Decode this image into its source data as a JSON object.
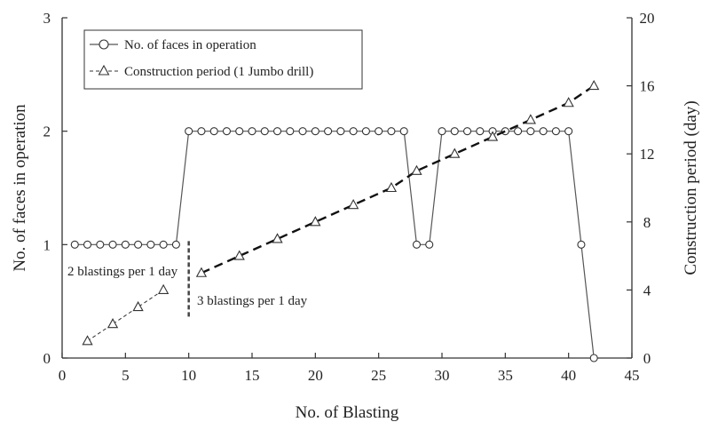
{
  "chart_data": {
    "type": "line",
    "xlabel": "No. of Blasting",
    "ylabel_left": "No. of faces in operation",
    "ylabel_right": "Construction period (day)",
    "xlim": [
      0,
      45
    ],
    "ylim_left": [
      0,
      3
    ],
    "ylim_right": [
      0,
      20
    ],
    "x_ticks": [
      0,
      5,
      10,
      15,
      20,
      25,
      30,
      35,
      40,
      45
    ],
    "y_left_ticks": [
      0,
      1,
      2,
      3
    ],
    "y_right_ticks": [
      0,
      4,
      8,
      12,
      16,
      20
    ],
    "grid": false,
    "legend_position": "top-left",
    "series": [
      {
        "name": "No. of faces in operation",
        "axis": "left",
        "marker": "circle",
        "line_style": "solid",
        "x": [
          1,
          2,
          3,
          4,
          5,
          6,
          7,
          8,
          9,
          10,
          11,
          12,
          13,
          14,
          15,
          16,
          17,
          18,
          19,
          20,
          21,
          22,
          23,
          24,
          25,
          26,
          27,
          28,
          29,
          30,
          31,
          32,
          33,
          34,
          35,
          36,
          37,
          38,
          39,
          40,
          41,
          42
        ],
        "y": [
          1,
          1,
          1,
          1,
          1,
          1,
          1,
          1,
          1,
          2,
          2,
          2,
          2,
          2,
          2,
          2,
          2,
          2,
          2,
          2,
          2,
          2,
          2,
          2,
          2,
          2,
          2,
          1,
          1,
          2,
          2,
          2,
          2,
          2,
          2,
          2,
          2,
          2,
          2,
          2,
          1,
          0
        ]
      },
      {
        "name": "Construction period (1 Jumbo drill)",
        "axis": "right",
        "marker": "triangle",
        "line_style": "dashed",
        "x": [
          2,
          4,
          6,
          8,
          11,
          14,
          17,
          20,
          23,
          26,
          28,
          31,
          34,
          37,
          40,
          42
        ],
        "y": [
          1,
          2,
          3,
          4,
          5,
          6,
          7,
          8,
          9,
          10,
          11,
          12,
          13,
          14,
          15,
          16
        ]
      }
    ],
    "annotations": [
      {
        "text": "2 blastings per 1 day"
      },
      {
        "text": "3 blastings per 1 day"
      }
    ]
  }
}
